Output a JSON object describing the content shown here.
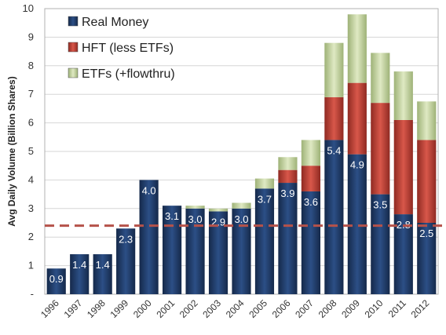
{
  "chart_data": {
    "type": "bar",
    "stacked": true,
    "title": "",
    "xlabel": "",
    "ylabel": "Avg Daily Volume (Billion Shares)",
    "ylim": [
      0,
      10
    ],
    "y_ticks": [
      "-",
      "1",
      "2",
      "3",
      "4",
      "5",
      "6",
      "7",
      "8",
      "9",
      "10"
    ],
    "grid": "horizontal",
    "legend_position": "top-left",
    "categories": [
      "1996",
      "1997",
      "1998",
      "1999",
      "2000",
      "2001",
      "2002",
      "2003",
      "2004",
      "2005",
      "2006",
      "2007",
      "2008",
      "2009",
      "2010",
      "2011",
      "2012"
    ],
    "series": [
      {
        "name": "Real Money",
        "color": "#1f3d6b",
        "values": [
          0.9,
          1.4,
          1.4,
          2.3,
          4.0,
          3.1,
          3.0,
          2.9,
          3.0,
          3.7,
          3.9,
          3.6,
          5.4,
          4.9,
          3.5,
          2.8,
          2.5
        ]
      },
      {
        "name": "HFT (less ETFs)",
        "color": "#c0392b",
        "values": [
          0,
          0,
          0,
          0,
          0,
          0,
          0,
          0,
          0,
          0,
          0.45,
          0.9,
          1.5,
          2.5,
          3.2,
          3.3,
          2.9
        ]
      },
      {
        "name": "ETFs (+flowthru)",
        "color": "#c5d6a0",
        "values": [
          0,
          0,
          0,
          0,
          0,
          0,
          0.1,
          0.1,
          0.2,
          0.35,
          0.45,
          0.9,
          1.9,
          2.4,
          1.75,
          1.7,
          1.35
        ]
      }
    ],
    "data_labels": [
      "0.9",
      "1.4",
      "1.4",
      "2.3",
      "4.0",
      "3.1",
      "3.0",
      "2.9",
      "3.0",
      "3.7",
      "3.9",
      "3.6",
      "5.4",
      "4.9",
      "3.5",
      "2.8",
      "2.5"
    ],
    "reference_line": {
      "y": 2.4,
      "style": "dashed",
      "color": "#b5524a"
    }
  }
}
